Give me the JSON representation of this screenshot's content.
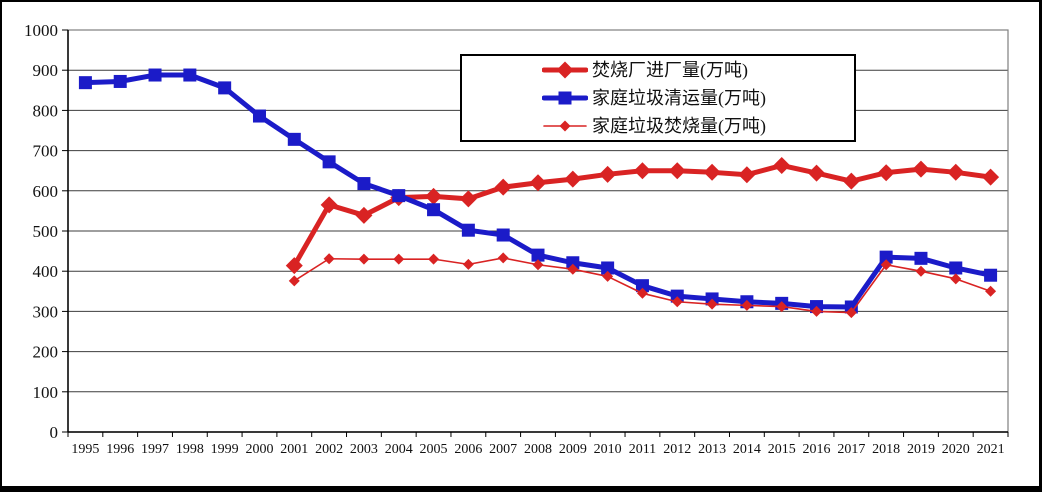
{
  "figure": {
    "background_color": "#ffffff",
    "frame_color": "#000000",
    "title": ""
  },
  "colors": {
    "series_red": "#d92323",
    "series_blue": "#1b1bc8",
    "gridline": "#3d3d3d",
    "plot_border": "#7f7f7f",
    "axis": "#000000",
    "text": "#111111"
  },
  "legend": {
    "position": "top-center",
    "items": [
      {
        "label": "焚烧厂进厂量(万吨)"
      },
      {
        "label": "家庭垃圾清运量(万吨)"
      },
      {
        "label": "家庭垃圾焚烧量(万吨)"
      }
    ]
  },
  "chart_data": {
    "type": "line",
    "title": "",
    "xlabel": "",
    "ylabel": "",
    "ylim": [
      0,
      1000
    ],
    "ytick_step": 100,
    "grid": true,
    "legend_position": "top-center",
    "categories": [
      "1995",
      "1996",
      "1997",
      "1998",
      "1999",
      "2000",
      "2001",
      "2002",
      "2003",
      "2004",
      "2005",
      "2006",
      "2007",
      "2008",
      "2009",
      "2010",
      "2011",
      "2012",
      "2013",
      "2014",
      "2015",
      "2016",
      "2017",
      "2018",
      "2019",
      "2020",
      "2021"
    ],
    "series": [
      {
        "id": "plant-intake",
        "name": "焚烧厂进厂量(万吨)",
        "color": "#d92323",
        "line_width": 5,
        "marker": "diamond",
        "marker_size": 17,
        "values": [
          null,
          null,
          null,
          null,
          null,
          null,
          414,
          565,
          539,
          583,
          586,
          580,
          609,
          620,
          629,
          641,
          650,
          650,
          646,
          640,
          663,
          644,
          624,
          645,
          654,
          646,
          634
        ]
      },
      {
        "id": "household-collection",
        "name": "家庭垃圾清运量(万吨)",
        "color": "#1b1bc8",
        "line_width": 5,
        "marker": "square",
        "marker_size": 13,
        "values": [
          869,
          872,
          888,
          888,
          856,
          786,
          728,
          672,
          618,
          588,
          553,
          502,
          490,
          440,
          421,
          408,
          364,
          338,
          331,
          324,
          320,
          312,
          311,
          435,
          432,
          408,
          390
        ]
      },
      {
        "id": "household-incinerated",
        "name": "家庭垃圾焚烧量(万吨)",
        "color": "#d92323",
        "line_width": 1.6,
        "marker": "diamond",
        "marker_size": 11,
        "values": [
          null,
          null,
          null,
          null,
          null,
          null,
          376,
          431,
          430,
          430,
          430,
          417,
          433,
          416,
          405,
          387,
          345,
          324,
          318,
          315,
          312,
          300,
          297,
          416,
          400,
          381,
          350
        ]
      }
    ]
  }
}
